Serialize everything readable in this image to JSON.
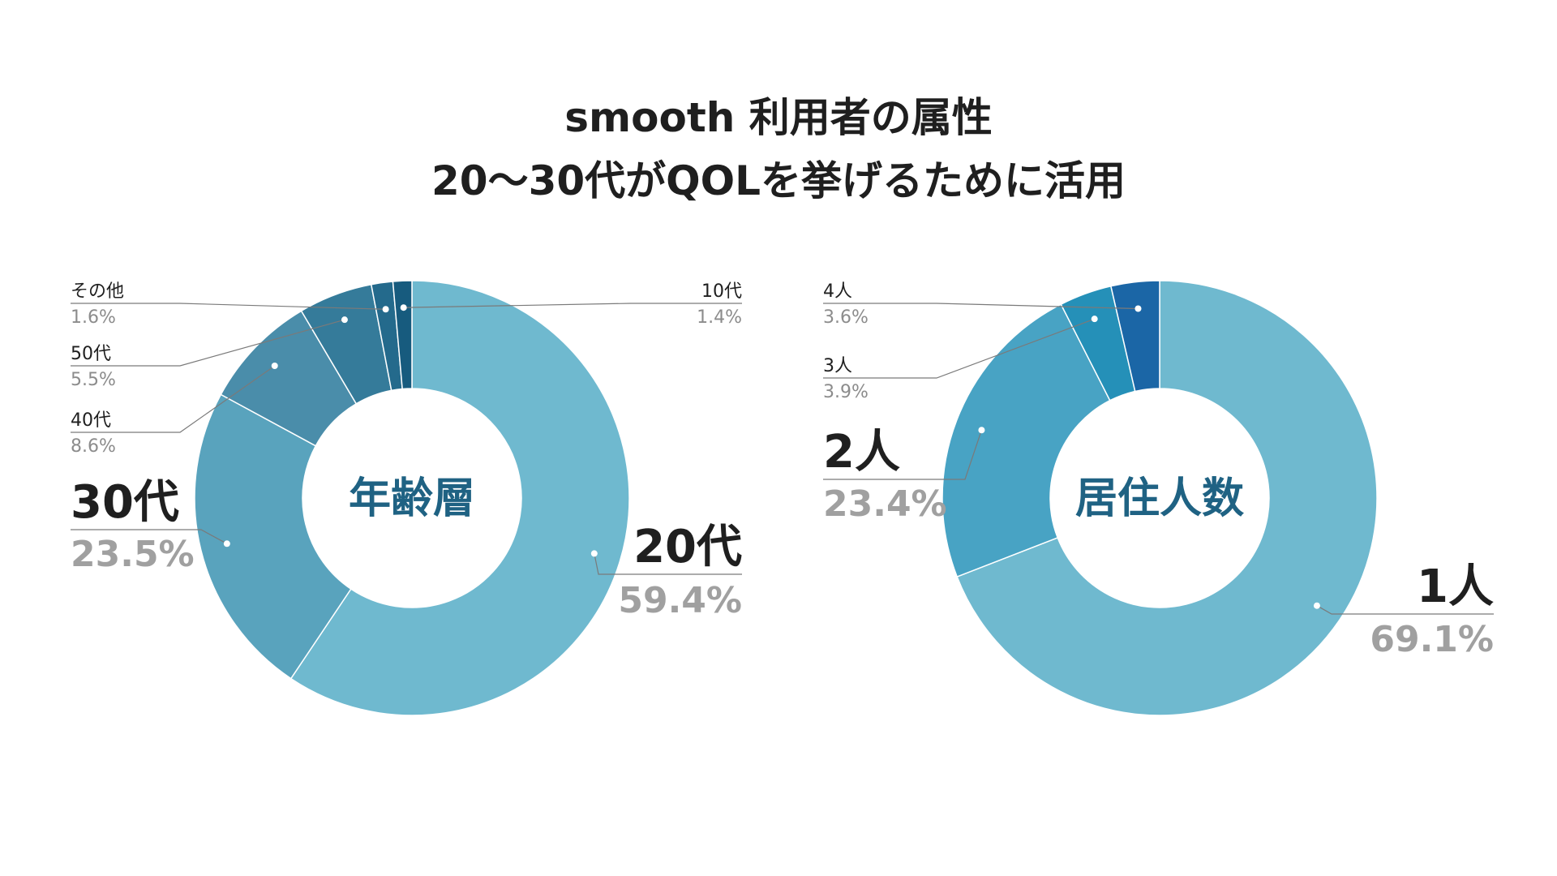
{
  "title": {
    "line1": "smooth 利用者の属性",
    "line2": "20〜30代がQOLを挙げるために活用"
  },
  "chart_data": [
    {
      "type": "pie",
      "center_label": "年齢層",
      "slices": [
        {
          "label": "20代",
          "percent_text": "59.4%",
          "value": 59.4,
          "color": "#6fb9cf"
        },
        {
          "label": "30代",
          "percent_text": "23.5%",
          "value": 23.5,
          "color": "#59a3bd"
        },
        {
          "label": "40代",
          "percent_text": "8.6%",
          "value": 8.6,
          "color": "#4a8daa"
        },
        {
          "label": "50代",
          "percent_text": "5.5%",
          "value": 5.5,
          "color": "#357b9a"
        },
        {
          "label": "その他",
          "percent_text": "1.6%",
          "value": 1.6,
          "color": "#246a8c"
        },
        {
          "label": "10代",
          "percent_text": "1.4%",
          "value": 1.4,
          "color": "#175b7e"
        }
      ]
    },
    {
      "type": "pie",
      "center_label": "居住人数",
      "slices": [
        {
          "label": "1人",
          "percent_text": "69.1%",
          "value": 69.1,
          "color": "#6fb9cf"
        },
        {
          "label": "2人",
          "percent_text": "23.4%",
          "value": 23.4,
          "color": "#48a3c4"
        },
        {
          "label": "3人",
          "percent_text": "3.9%",
          "value": 3.9,
          "color": "#2590b8"
        },
        {
          "label": "4人",
          "percent_text": "3.6%",
          "value": 3.6,
          "color": "#1b66a6"
        }
      ]
    }
  ]
}
